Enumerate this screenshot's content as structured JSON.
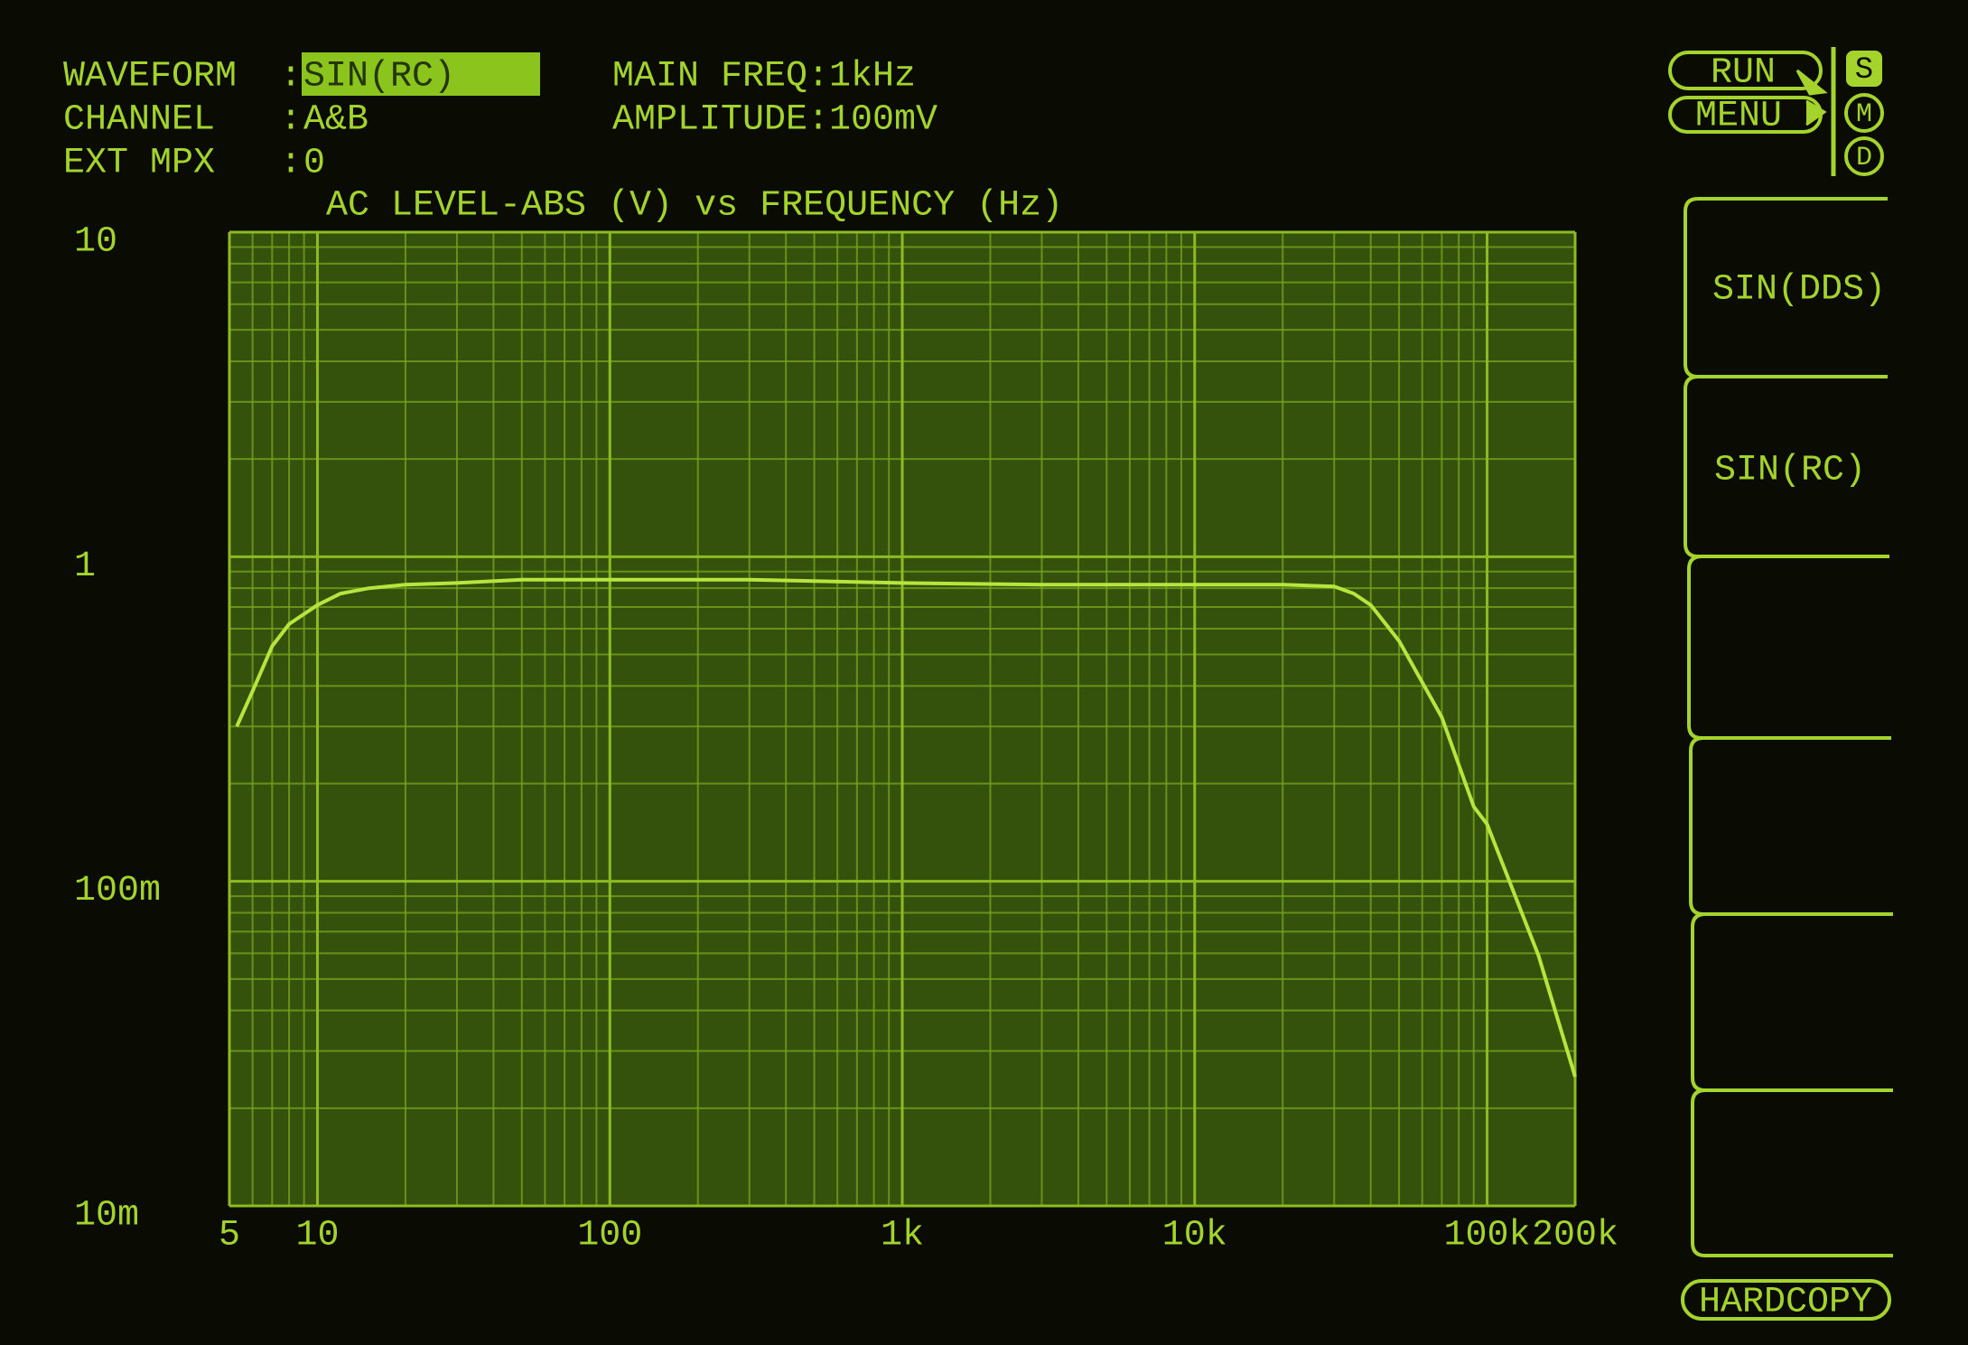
{
  "header": {
    "fields": [
      {
        "label": "WAVEFORM",
        "separator": ":",
        "value": "SIN(RC)"
      },
      {
        "label": "CHANNEL",
        "separator": ":",
        "value": "A&B"
      },
      {
        "label": "EXT MPX",
        "separator": ":",
        "value": "0"
      }
    ],
    "settings": [
      "MAIN FREQ:1kHz",
      "AMPLITUDE:100mV"
    ]
  },
  "controls": {
    "run": "RUN",
    "menu": "MENU",
    "modes": [
      "S",
      "M",
      "D"
    ]
  },
  "softkeys": [
    "SIN(DDS)",
    "SIN(RC)"
  ],
  "hardcopy": "HARDCOPY",
  "chart_data": {
    "type": "line",
    "title": "AC LEVEL-ABS (V) vs FREQUENCY (Hz)",
    "x": [
      5.3,
      6,
      7,
      8,
      10,
      12,
      15,
      20,
      30,
      50,
      100,
      300,
      1000,
      3000,
      10000,
      20000,
      30000,
      35000,
      40000,
      50000,
      70000,
      90000,
      100000,
      150000,
      200000
    ],
    "values": [
      0.3,
      0.385,
      0.53,
      0.62,
      0.71,
      0.77,
      0.8,
      0.82,
      0.83,
      0.85,
      0.85,
      0.85,
      0.83,
      0.82,
      0.82,
      0.82,
      0.81,
      0.77,
      0.71,
      0.55,
      0.32,
      0.17,
      0.15,
      0.059,
      0.025
    ],
    "color": "#b6e63e",
    "xscale": "log",
    "yscale": "log",
    "xlim": [
      5,
      200000
    ],
    "ylim": [
      0.01,
      10
    ],
    "xticks": [
      5,
      10,
      100,
      {
        "value": 1000,
        "label": "1k"
      },
      {
        "value": 10000,
        "label": "10k"
      },
      {
        "value": 100000,
        "label": "100k"
      },
      {
        "value": 200000,
        "label": "200k"
      }
    ],
    "yticks": [
      10,
      1,
      {
        "value": 0.1,
        "label": "100m"
      },
      {
        "value": 0.01,
        "label": "10m"
      }
    ],
    "grid": true
  }
}
